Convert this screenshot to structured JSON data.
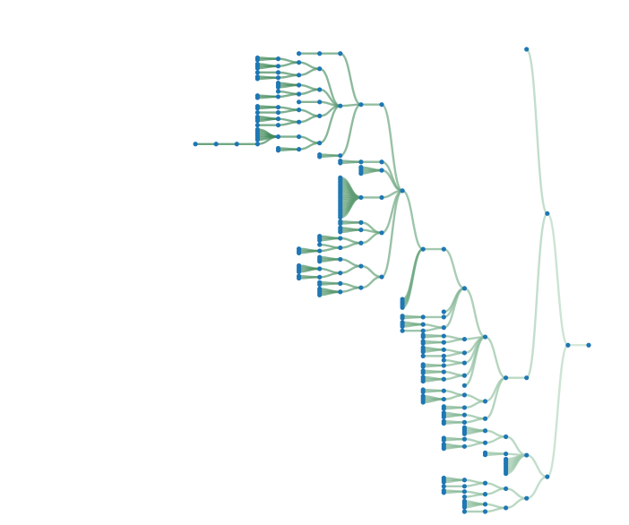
{
  "colors": {
    "node": "#1f77b4",
    "link_near_root": "#d9f0df",
    "link_deep": "#2f7d4a"
  },
  "orientation": "root-right",
  "tree": [
    [
      [
        0,
        [
          [
            [
              [
                [
                  [
                    [
                      [
                        [
                          [
                            [
                              0
                            ]
                          ],
                          [
                            [
                              [
                                [
                                  0,
                                  0
                                ],
                                [
                                  0,
                                  0,
                                  0
                                ]
                              ],
                              [
                                [
                                  0
                                ],
                                [
                                  0,
                                  0
                                ]
                              ]
                            ],
                            [
                              [
                                0,
                                0,
                                0
                              ],
                              [
                                0,
                                [
                                  0,
                                  0
                                ]
                              ]
                            ],
                            [
                              0
                            ],
                            [
                              [
                                [
                                  0,
                                  0
                                ],
                                [
                                  0
                                ]
                              ],
                              [
                                [
                                  0,
                                  0,
                                  0
                                ],
                                [
                                  0
                                ]
                              ]
                            ],
                            [
                              [
                                [
                                  0,
                                  0,
                                  0,
                                  0,
                                  0,
                                  0,
                                  [
                                    [
                                      [
                                        0
                                      ]
                                    ]
                                  ]
                                ]
                              ],
                              [
                                0,
                                0
                              ]
                            ]
                          ],
                          [
                            0,
                            0
                          ]
                        ]
                      ],
                      [
                        [
                          0,
                          0
                        ]
                      ],
                      [
                        0,
                        0,
                        0,
                        0
                      ],
                      [
                        [
                          0,
                          0,
                          0,
                          0,
                          0,
                          0,
                          0,
                          0,
                          0,
                          0,
                          0,
                          0,
                          0,
                          0,
                          0,
                          0,
                          0,
                          0,
                          0,
                          0
                        ]
                      ],
                      [
                        [
                          0,
                          0
                        ],
                        [
                          0,
                          0,
                          0
                        ],
                        [
                          [
                            0,
                            0,
                            0
                          ],
                          [
                            0,
                            [
                              0,
                              0,
                              0
                            ]
                          ]
                        ]
                      ],
                      [
                        [
                          [
                            0,
                            0,
                            0
                          ],
                          [
                            [
                              0,
                              0,
                              0,
                              0
                            ],
                            [
                              0,
                              0
                            ]
                          ]
                        ],
                        [
                          [
                            0,
                            0
                          ],
                          [
                            0,
                            0,
                            0,
                            0
                          ]
                        ]
                      ]
                    ],
                    0,
                    0,
                    0,
                    0,
                    0
                  ]
                ],
                0,
                [
                  [
                    0,
                    0
                  ]
                ],
                [
                  [
                    0,
                    0,
                    0
                  ],
                  [
                    0
                  ]
                ]
              ],
              [
                [
                  0,
                  0
                ],
                [
                  0,
                  0
                ]
              ],
              [
                [
                  0,
                  0,
                  0
                ],
                [
                  0
                ]
              ],
              [
                0,
                [
                  0,
                  0
                ]
              ],
              [
                [
                  0,
                  0
                ],
                [
                  0,
                  0,
                  0
                ]
              ],
              0
            ],
            [
              [
                [
                  0,
                  0
                ],
                [
                  0,
                  0,
                  0,
                  0
                ]
              ],
              [
                0,
                0
              ]
            ],
            [
              [
                0,
                0,
                0
              ],
              [
                0,
                0
              ]
            ]
          ]
        ]
      ],
      [
        [
          [
            [
              0,
              0,
              0,
              0
            ],
            [
              [
                0,
                0
              ],
              [
                0,
                0,
                0
              ]
            ]
          ],
          [
            0,
            0
          ],
          0,
          0,
          0,
          0,
          0,
          0,
          0,
          0
        ],
        [
          [
            [
              [
                0,
                0,
                0
              ],
              [
                0
              ]
            ],
            [
              [
                0,
                0
              ],
              0
            ]
          ],
          [
            [
              0,
              0,
              0,
              0
            ],
            [
              0
            ]
          ]
        ]
      ]
    ]
  ]
}
